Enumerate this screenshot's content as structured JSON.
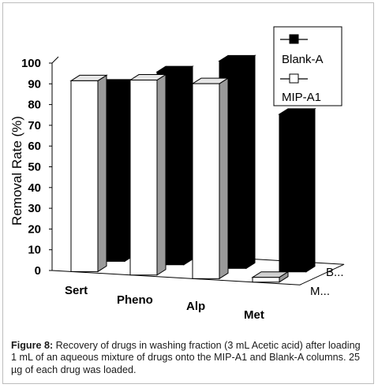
{
  "chart_data": {
    "type": "bar",
    "title": "",
    "xlabel": "",
    "ylabel": "Removal Rate (%)",
    "ylim": [
      0,
      100
    ],
    "yticks": [
      0,
      10,
      20,
      30,
      40,
      50,
      60,
      70,
      80,
      90,
      100
    ],
    "grid": false,
    "legend_position": "top-right",
    "categories": [
      "Sert",
      "Pheno",
      "Alp",
      "Met"
    ],
    "depth_labels": [
      "B...",
      "M..."
    ],
    "series": [
      {
        "name": "Blank-A",
        "values": [
          85,
          93,
          100,
          76
        ],
        "color": "#000000"
      },
      {
        "name": "MIP-A1",
        "values": [
          92,
          94,
          94,
          1
        ],
        "color": "#ffffff"
      }
    ]
  },
  "caption": {
    "label": "Figure 8:",
    "text": " Recovery of drugs in washing fraction (3 mL Acetic acid) after loading 1 mL of an aqueous mixture of drugs onto the MIP-A1 and Blank-A columns. 25 µg of each drug was loaded."
  }
}
